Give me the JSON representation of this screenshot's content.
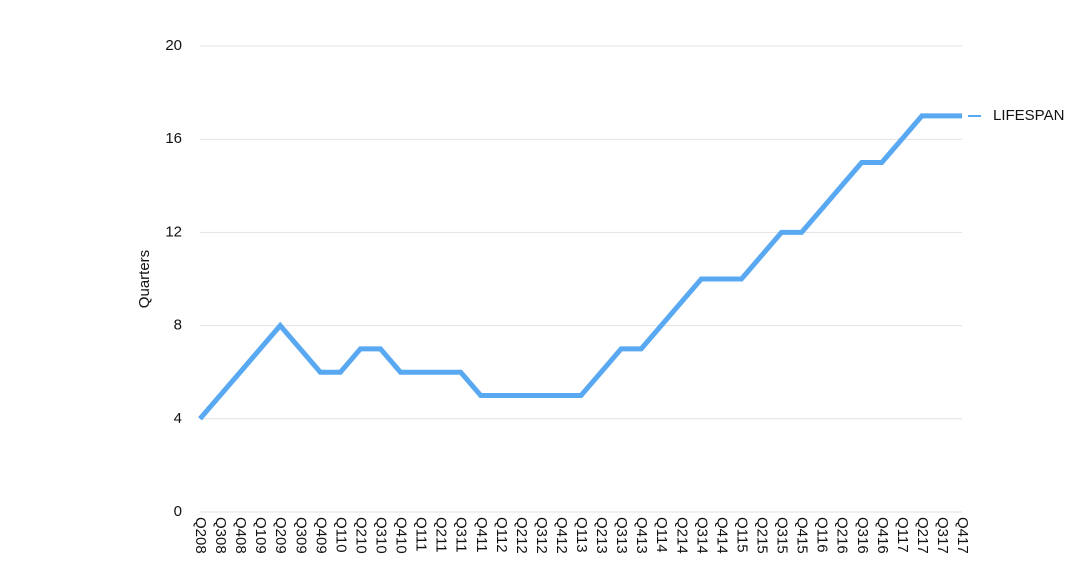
{
  "chart_data": {
    "type": "line",
    "y_label": "Quarters",
    "categories": [
      "Q208",
      "Q308",
      "Q408",
      "Q109",
      "Q209",
      "Q309",
      "Q409",
      "Q110",
      "Q210",
      "Q310",
      "Q410",
      "Q111",
      "Q211",
      "Q311",
      "Q411",
      "Q112",
      "Q212",
      "Q312",
      "Q412",
      "Q113",
      "Q213",
      "Q313",
      "Q413",
      "Q114",
      "Q214",
      "Q314",
      "Q414",
      "Q115",
      "Q215",
      "Q315",
      "Q415",
      "Q116",
      "Q216",
      "Q316",
      "Q416",
      "Q117",
      "Q217",
      "Q317",
      "Q417"
    ],
    "series": [
      {
        "name": "LIFESPAN",
        "color": "#58a8f2",
        "values": [
          4,
          5,
          6,
          7,
          8,
          7,
          6,
          6,
          7,
          7,
          6,
          6,
          6,
          6,
          5,
          5,
          5,
          5,
          5,
          5,
          6,
          7,
          7,
          8,
          9,
          10,
          10,
          10,
          11,
          12,
          12,
          13,
          14,
          15,
          15,
          16,
          17,
          17,
          17
        ]
      }
    ],
    "ylim": [
      0,
      20
    ],
    "yticks": [
      0,
      4,
      8,
      12,
      16,
      20
    ],
    "grid": true,
    "legend": "right"
  }
}
